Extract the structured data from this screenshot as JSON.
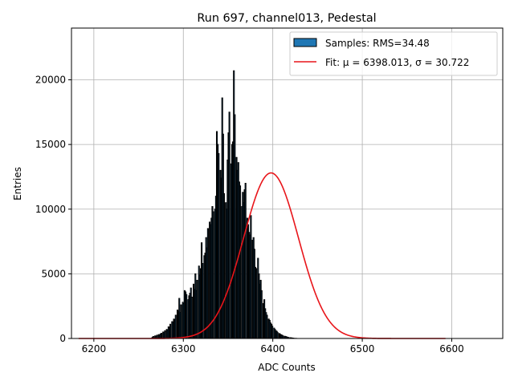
{
  "chart_data": {
    "type": "bar",
    "title": "Run 697, channel013, Pedestal",
    "xlabel": "ADC Counts",
    "ylabel": "Entries",
    "xlim": [
      6175,
      6657
    ],
    "ylim": [
      0,
      24000
    ],
    "xticks": [
      6200,
      6300,
      6400,
      6500,
      6600
    ],
    "yticks": [
      0,
      5000,
      10000,
      15000,
      20000
    ],
    "xtick_labels": [
      "6200",
      "6300",
      "6400",
      "6500",
      "6600"
    ],
    "ytick_labels": [
      "0",
      "5000",
      "10000",
      "15000",
      "20000"
    ],
    "grid": true,
    "legend_position": "top-right",
    "histogram": {
      "name": "Samples: RMS=34.48",
      "bin_width": 1,
      "x_start": 6265,
      "values": [
        100,
        150,
        0,
        200,
        150,
        250,
        0,
        300,
        250,
        350,
        400,
        0,
        500,
        450,
        600,
        0,
        700,
        650,
        900,
        850,
        1100,
        0,
        1300,
        1250,
        1500,
        1450,
        1800,
        0,
        2200,
        2100,
        3100,
        2000,
        2600,
        0,
        2800,
        2700,
        3700,
        3600,
        3400,
        0,
        3000,
        3300,
        3500,
        3900,
        3200,
        0,
        4200,
        3800,
        5000,
        3700,
        4500,
        0,
        5600,
        4900,
        5400,
        7400,
        5800,
        0,
        6400,
        6600,
        7800,
        7000,
        8500,
        0,
        9000,
        8800,
        9300,
        10200,
        9800,
        0,
        10000,
        11000,
        16000,
        15000,
        14300,
        0,
        13000,
        12400,
        18600,
        15800,
        11200,
        0,
        10500,
        10000,
        13800,
        15900,
        17500,
        0,
        13500,
        15000,
        15200,
        20700,
        17300,
        0,
        14000,
        13000,
        13600,
        12100,
        11800,
        0,
        10200,
        11300,
        10500,
        11500,
        12000,
        0,
        9300,
        8800,
        8200,
        8000,
        9500,
        0,
        7600,
        7800,
        6900,
        5500,
        5400,
        0,
        6200,
        5000,
        4200,
        4500,
        3700,
        0,
        2700,
        3000,
        2300,
        2000,
        1800,
        0,
        1500,
        1400,
        1200,
        1100,
        950,
        0,
        800,
        700,
        600,
        550,
        450,
        0,
        380,
        320,
        280,
        250,
        200,
        0,
        170,
        150,
        120,
        100,
        80,
        0,
        60,
        50,
        40,
        30,
        20,
        0,
        10,
        5
      ]
    },
    "fit": {
      "name": "Fit: μ = 6398.013, σ = 30.722",
      "mu": 6398.013,
      "sigma": 30.722,
      "amplitude": 12800,
      "x_range": [
        6183,
        6593
      ],
      "color": "#e8151a"
    },
    "colors": {
      "bar_fill": "#1f77b4",
      "bar_edge": "#000000",
      "grid": "#b0b0b0"
    }
  }
}
